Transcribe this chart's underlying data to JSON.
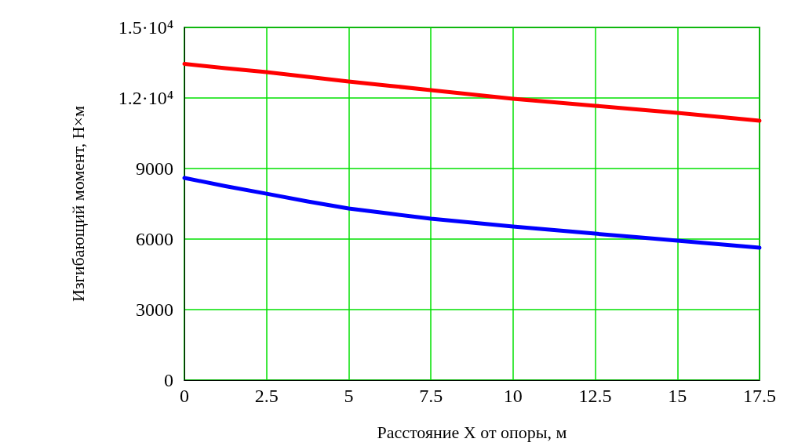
{
  "chart_data": {
    "type": "line",
    "xlabel": "Расстояние X от опоры, м",
    "ylabel": "Изгибающий момент, Н×м",
    "x": [
      0,
      1.25,
      2.5,
      3.75,
      5,
      6.25,
      7.5,
      8.75,
      10,
      11.25,
      12.5,
      13.75,
      15,
      16.25,
      17.5
    ],
    "series": [
      {
        "color": "#ff0000",
        "values": [
          13450,
          13270,
          13100,
          12900,
          12700,
          12520,
          12330,
          12150,
          11970,
          11820,
          11670,
          11520,
          11370,
          11200,
          11030
        ]
      },
      {
        "color": "#0000ff",
        "values": [
          8600,
          8250,
          7930,
          7600,
          7300,
          7080,
          6870,
          6700,
          6530,
          6380,
          6230,
          6080,
          5930,
          5780,
          5630
        ]
      }
    ],
    "xlim": [
      0,
      17.5
    ],
    "xticks": [
      0,
      2.5,
      5,
      7.5,
      10,
      12.5,
      15,
      17.5
    ],
    "ylim": [
      0,
      15000
    ],
    "yticks": [
      0,
      3000,
      6000,
      9000,
      {
        "value": 12000,
        "label": "1.2·10⁴"
      },
      {
        "value": 15000,
        "label": "1.5·10⁴"
      }
    ],
    "grid": true,
    "marker": "none",
    "line_style": "solid"
  }
}
